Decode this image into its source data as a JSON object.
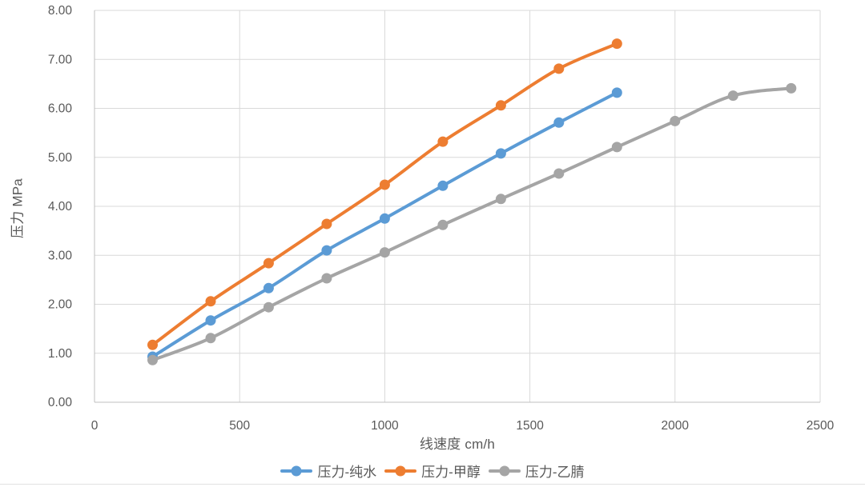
{
  "chart_data": {
    "type": "line",
    "title": "",
    "xlabel": "线速度 cm/h",
    "ylabel": "压力 MPa",
    "xlim": [
      0,
      2500
    ],
    "ylim": [
      0,
      8
    ],
    "x_ticks": [
      "0",
      "500",
      "1000",
      "1500",
      "2000",
      "2500"
    ],
    "y_ticks": [
      "0.00",
      "1.00",
      "2.00",
      "3.00",
      "4.00",
      "5.00",
      "6.00",
      "7.00",
      "8.00"
    ],
    "grid": true,
    "line_style": "smooth-with-circle-markers",
    "legend_position": "bottom",
    "x": [
      200,
      400,
      600,
      800,
      1000,
      1200,
      1400,
      1600,
      1800,
      2000,
      2200,
      2400
    ],
    "series": [
      {
        "name": "压力-纯水",
        "slug": "pure-water",
        "color": "#5B9BD5",
        "values": [
          0.93,
          1.67,
          2.33,
          3.1,
          3.75,
          4.42,
          5.08,
          5.71,
          6.32
        ]
      },
      {
        "name": "压力-甲醇",
        "slug": "methanol",
        "color": "#ED7D31",
        "values": [
          1.17,
          2.06,
          2.84,
          3.64,
          4.44,
          5.32,
          6.06,
          6.81,
          7.32
        ]
      },
      {
        "name": "压力-乙腈",
        "slug": "acetonitrile",
        "color": "#A5A5A5",
        "values": [
          0.86,
          1.31,
          1.94,
          2.53,
          3.06,
          3.62,
          4.15,
          4.67,
          5.21,
          5.74,
          6.26,
          6.41
        ]
      }
    ]
  },
  "style": {
    "grid_color": "#D9D9D9",
    "axis_color": "#BFBFBF",
    "text_color": "#595959"
  }
}
